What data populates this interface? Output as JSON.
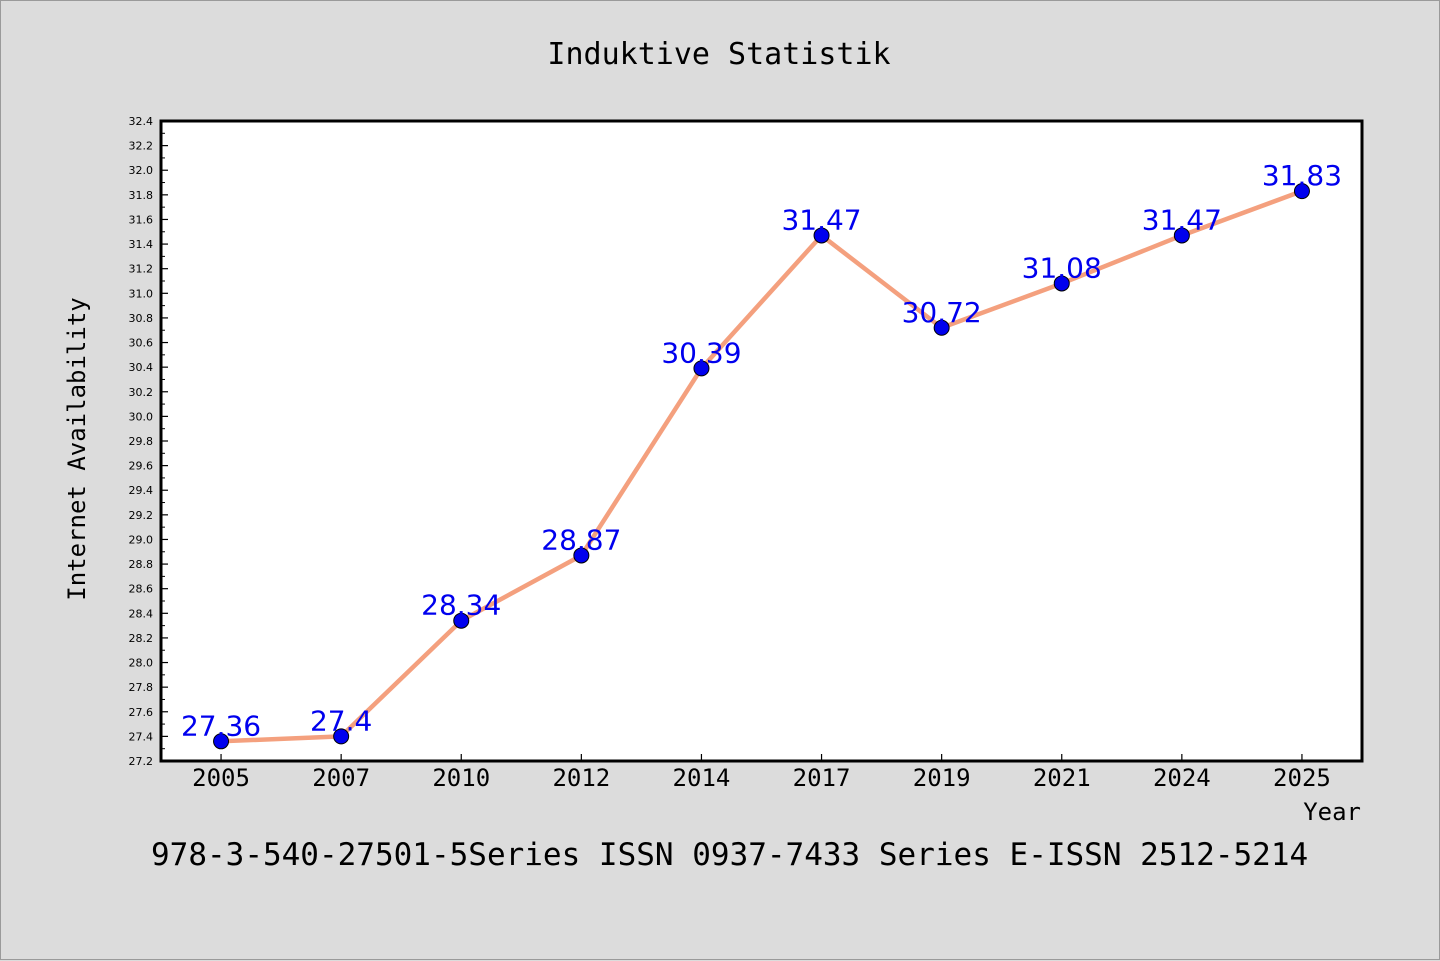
{
  "chart_data": {
    "type": "line",
    "title": "Induktive Statistik",
    "xlabel": "Year",
    "ylabel": "Internet Availability",
    "footer": "978-3-540-27501-5Series ISSN 0937-7433 Series E-ISSN 2512-5214",
    "categories": [
      "2005",
      "2007",
      "2010",
      "2012",
      "2014",
      "2017",
      "2019",
      "2021",
      "2024",
      "2025"
    ],
    "series": [
      {
        "values": [
          27.36,
          27.4,
          28.34,
          28.87,
          30.39,
          31.47,
          30.72,
          31.08,
          31.47,
          31.83
        ],
        "labels": [
          "27.36",
          "27.4",
          "28.34",
          "28.87",
          "30.39",
          "31.47",
          "30.72",
          "31.08",
          "31.47",
          "31.83"
        ],
        "line_color": "#f4a07e",
        "marker_color": "#0000ee",
        "label_color": "#0000ee"
      }
    ],
    "ylim": [
      27.2,
      32.4
    ],
    "y_ticks": [
      "27.2",
      "27.4",
      "27.6",
      "27.8",
      "28.0",
      "28.2",
      "28.4",
      "28.6",
      "28.8",
      "29.0",
      "29.2",
      "29.4",
      "29.6",
      "29.8",
      "30.0",
      "30.2",
      "30.4",
      "30.6",
      "30.8",
      "31.0",
      "31.2",
      "31.4",
      "31.6",
      "31.8",
      "32.0",
      "32.2",
      "32.4"
    ],
    "grid": false,
    "legend": "none",
    "colors": {
      "background": "#dcdcdc",
      "plot_background": "#ffffff",
      "axis": "#000000"
    }
  }
}
